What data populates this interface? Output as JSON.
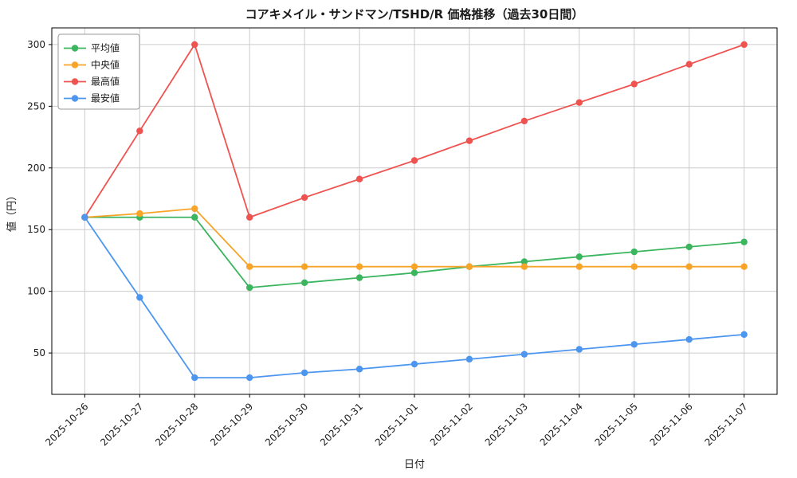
{
  "figure": {
    "title": "コアキメイル・サンドマン/TSHD/R 価格推移（過去30日間）",
    "xlabel": "日付",
    "ylabel": "値（円）"
  },
  "colors": {
    "grid": "#cccccc",
    "axis": "#000000",
    "background": "#ffffff",
    "legend_border": "#9a9a9a"
  },
  "chart_data": {
    "type": "line",
    "title": "コアキメイル・サンドマン/TSHD/R 価格推移（過去30日間）",
    "xlabel": "日付",
    "ylabel": "値（円）",
    "grid": true,
    "legend_position": "upper-left",
    "x_tick_rotation": -45,
    "ylim": [
      16.5,
      313.5
    ],
    "yticks": [
      50,
      100,
      150,
      200,
      250,
      300
    ],
    "categories": [
      "2025-10-26",
      "2025-10-27",
      "2025-10-28",
      "2025-10-29",
      "2025-10-30",
      "2025-10-31",
      "2025-11-01",
      "2025-11-02",
      "2025-11-03",
      "2025-11-04",
      "2025-11-05",
      "2025-11-06",
      "2025-11-07"
    ],
    "series": [
      {
        "id": "average",
        "name": "平均値",
        "color": "#3bb55e",
        "values": [
          160,
          160,
          160,
          103,
          107,
          111,
          115,
          120,
          124,
          128,
          132,
          136,
          140
        ]
      },
      {
        "id": "median",
        "name": "中央値",
        "color": "#f7a428",
        "values": [
          160,
          163,
          167,
          120,
          120,
          120,
          120,
          120,
          120,
          120,
          120,
          120,
          120
        ]
      },
      {
        "id": "max",
        "name": "最高値",
        "color": "#ef5350",
        "values": [
          160,
          230,
          300,
          160,
          176,
          191,
          206,
          222,
          238,
          253,
          268,
          284,
          300
        ]
      },
      {
        "id": "min",
        "name": "最安値",
        "color": "#4d96f0",
        "values": [
          160,
          95,
          30,
          30,
          34,
          37,
          41,
          45,
          49,
          53,
          57,
          61,
          65
        ]
      }
    ]
  }
}
